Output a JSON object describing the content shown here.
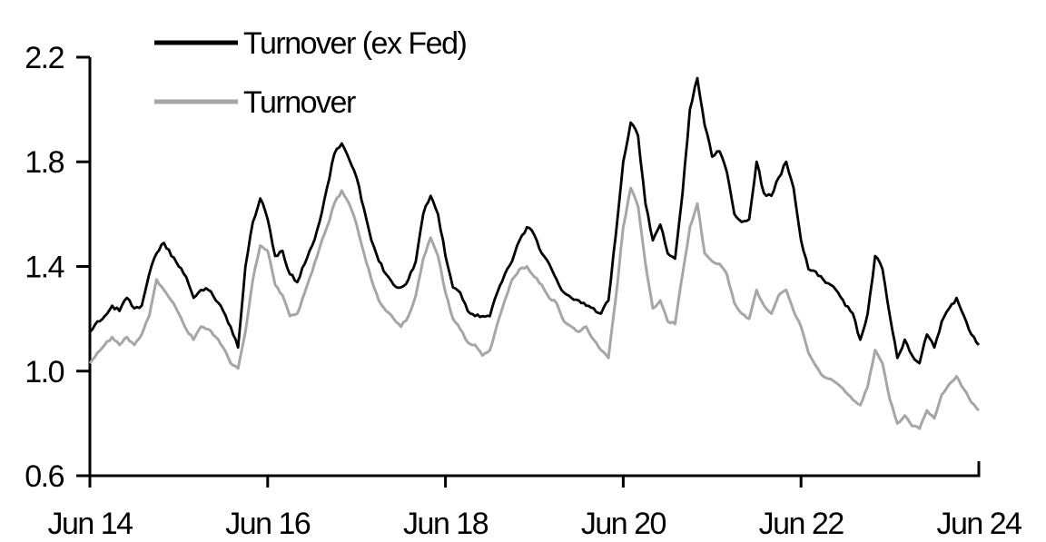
{
  "colors": {
    "background": "#ffffff",
    "axis": "#000000",
    "series_ex_fed": "#000000",
    "series_turnover": "#a6a6a6",
    "text": "#000000"
  },
  "legend": {
    "position": "top-left-inside"
  },
  "chart_data": {
    "type": "line",
    "title": "",
    "xlabel": "",
    "ylabel": "",
    "grid": false,
    "ylim": [
      0.6,
      2.2
    ],
    "y_ticks": [
      0.6,
      1.0,
      1.4,
      1.8,
      2.2
    ],
    "y_tick_labels": [
      "0.6",
      "1.0",
      "1.4",
      "1.8",
      "2.2"
    ],
    "x_tick_labels": [
      "Jun 14",
      "Jun 16",
      "Jun 18",
      "Jun 20",
      "Jun 22",
      "Jun 24"
    ],
    "x_range_note": "monthly samples from Jun 2014 to Jun 2024",
    "series": [
      {
        "name": "Turnover (ex Fed)",
        "color": "#000000",
        "values": [
          1.15,
          1.19,
          1.21,
          1.25,
          1.23,
          1.28,
          1.24,
          1.25,
          1.37,
          1.45,
          1.49,
          1.44,
          1.4,
          1.36,
          1.28,
          1.31,
          1.31,
          1.27,
          1.23,
          1.17,
          1.09,
          1.4,
          1.57,
          1.66,
          1.58,
          1.44,
          1.46,
          1.37,
          1.34,
          1.41,
          1.48,
          1.57,
          1.7,
          1.83,
          1.87,
          1.81,
          1.74,
          1.62,
          1.5,
          1.42,
          1.37,
          1.33,
          1.32,
          1.35,
          1.42,
          1.6,
          1.67,
          1.6,
          1.44,
          1.32,
          1.3,
          1.23,
          1.21,
          1.21,
          1.21,
          1.3,
          1.37,
          1.42,
          1.5,
          1.55,
          1.52,
          1.45,
          1.41,
          1.35,
          1.3,
          1.28,
          1.27,
          1.25,
          1.24,
          1.22,
          1.27,
          1.52,
          1.8,
          1.95,
          1.9,
          1.64,
          1.5,
          1.56,
          1.45,
          1.43,
          1.68,
          2.0,
          2.12,
          1.94,
          1.82,
          1.84,
          1.76,
          1.6,
          1.57,
          1.58,
          1.8,
          1.68,
          1.67,
          1.74,
          1.8,
          1.7,
          1.5,
          1.39,
          1.38,
          1.35,
          1.33,
          1.3,
          1.25,
          1.22,
          1.12,
          1.22,
          1.44,
          1.39,
          1.21,
          1.05,
          1.12,
          1.06,
          1.03,
          1.14,
          1.09,
          1.19,
          1.24,
          1.28,
          1.21,
          1.14,
          1.1
        ]
      },
      {
        "name": "Turnover",
        "color": "#a6a6a6",
        "values": [
          1.03,
          1.07,
          1.1,
          1.13,
          1.1,
          1.13,
          1.1,
          1.14,
          1.21,
          1.35,
          1.31,
          1.27,
          1.22,
          1.16,
          1.12,
          1.17,
          1.16,
          1.13,
          1.09,
          1.03,
          1.01,
          1.15,
          1.35,
          1.48,
          1.46,
          1.33,
          1.29,
          1.21,
          1.22,
          1.3,
          1.38,
          1.47,
          1.55,
          1.64,
          1.69,
          1.64,
          1.56,
          1.45,
          1.35,
          1.27,
          1.23,
          1.2,
          1.17,
          1.21,
          1.29,
          1.43,
          1.51,
          1.44,
          1.3,
          1.2,
          1.16,
          1.11,
          1.1,
          1.06,
          1.08,
          1.18,
          1.27,
          1.35,
          1.39,
          1.4,
          1.36,
          1.33,
          1.28,
          1.26,
          1.19,
          1.17,
          1.15,
          1.17,
          1.12,
          1.08,
          1.05,
          1.28,
          1.55,
          1.7,
          1.63,
          1.41,
          1.24,
          1.27,
          1.19,
          1.18,
          1.37,
          1.55,
          1.64,
          1.45,
          1.42,
          1.41,
          1.37,
          1.26,
          1.22,
          1.2,
          1.31,
          1.25,
          1.22,
          1.29,
          1.31,
          1.23,
          1.17,
          1.07,
          1.02,
          0.98,
          0.97,
          0.95,
          0.92,
          0.89,
          0.87,
          0.94,
          1.08,
          1.03,
          0.89,
          0.8,
          0.83,
          0.79,
          0.78,
          0.85,
          0.82,
          0.91,
          0.95,
          0.98,
          0.93,
          0.88,
          0.85
        ]
      }
    ]
  }
}
